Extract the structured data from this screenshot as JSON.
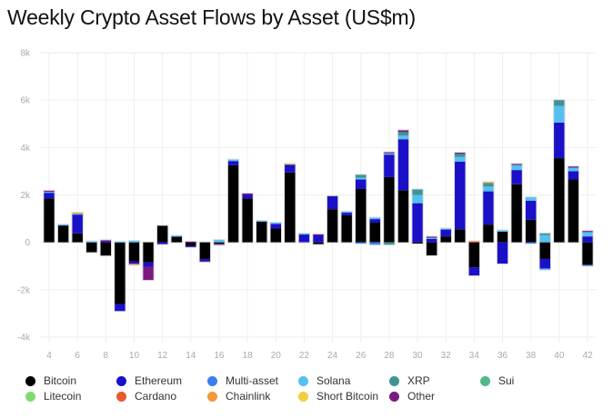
{
  "chart_data": {
    "type": "bar",
    "stacked": true,
    "title": "Weekly Crypto Asset Flows by Asset (US$m)",
    "xlabel": "",
    "ylabel": "",
    "ylim": [
      -4000,
      8000
    ],
    "yticks": [
      -4000,
      -2000,
      0,
      2000,
      4000,
      6000,
      8000
    ],
    "ytick_labels": [
      "-4k",
      "-2k",
      "0",
      "2k",
      "4k",
      "6k",
      "8k"
    ],
    "xtick_labels": [
      "4",
      "6",
      "8",
      "10",
      "12",
      "14",
      "16",
      "18",
      "20",
      "22",
      "24",
      "26",
      "28",
      "30",
      "32",
      "34",
      "36",
      "38",
      "40",
      "42"
    ],
    "grid": true,
    "legend_position": "bottom",
    "categories": [
      4,
      5,
      6,
      7,
      8,
      9,
      10,
      11,
      12,
      13,
      14,
      15,
      16,
      17,
      18,
      19,
      20,
      21,
      22,
      23,
      24,
      25,
      26,
      27,
      28,
      29,
      30,
      31,
      32,
      33,
      34,
      35,
      36,
      37,
      38,
      39,
      40,
      41,
      42
    ],
    "series": [
      {
        "name": "Bitcoin",
        "color": "#000000",
        "values": [
          1850,
          720,
          380,
          -420,
          -560,
          -2600,
          -800,
          -850,
          700,
          250,
          -150,
          -700,
          -60,
          3250,
          1850,
          880,
          580,
          2950,
          0,
          -80,
          1400,
          1150,
          2250,
          830,
          2750,
          2200,
          -50,
          -550,
          250,
          550,
          -1050,
          750,
          450,
          2450,
          950,
          -700,
          3550,
          2650,
          -950
        ]
      },
      {
        "name": "Ethereum",
        "color": "#1a10c8",
        "values": [
          250,
          0,
          800,
          0,
          60,
          -300,
          -100,
          -180,
          -80,
          0,
          -50,
          -80,
          0,
          180,
          150,
          0,
          200,
          350,
          350,
          320,
          550,
          100,
          400,
          150,
          950,
          2150,
          1650,
          150,
          300,
          2850,
          -350,
          1400,
          -900,
          600,
          800,
          -400,
          1500,
          350,
          250
        ]
      },
      {
        "name": "Multi-asset",
        "color": "#3b7ff0",
        "values": [
          0,
          0,
          0,
          0,
          0,
          0,
          0,
          0,
          0,
          0,
          0,
          0,
          0,
          0,
          0,
          0,
          0,
          0,
          0,
          0,
          0,
          0,
          -50,
          -100,
          0,
          0,
          0,
          0,
          0,
          0,
          0,
          0,
          0,
          0,
          -50,
          -50,
          0,
          0,
          -30
        ]
      },
      {
        "name": "Solana",
        "color": "#55c0f0",
        "values": [
          30,
          30,
          30,
          40,
          0,
          30,
          60,
          0,
          0,
          30,
          0,
          0,
          100,
          60,
          0,
          30,
          50,
          0,
          20,
          0,
          0,
          50,
          80,
          60,
          60,
          150,
          350,
          60,
          30,
          200,
          0,
          200,
          60,
          230,
          150,
          300,
          700,
          150,
          200
        ]
      },
      {
        "name": "XRP",
        "color": "#3f9493",
        "values": [
          0,
          0,
          0,
          0,
          0,
          0,
          0,
          0,
          0,
          0,
          0,
          0,
          0,
          0,
          0,
          0,
          0,
          0,
          0,
          0,
          0,
          0,
          120,
          0,
          -100,
          150,
          230,
          0,
          0,
          150,
          0,
          150,
          0,
          0,
          0,
          80,
          250,
          0,
          0
        ]
      },
      {
        "name": "Sui",
        "color": "#52b88c",
        "values": [
          0,
          0,
          0,
          0,
          0,
          0,
          0,
          0,
          0,
          0,
          0,
          0,
          0,
          0,
          0,
          0,
          0,
          0,
          0,
          0,
          0,
          0,
          0,
          0,
          0,
          0,
          0,
          0,
          0,
          0,
          0,
          0,
          0,
          0,
          0,
          0,
          0,
          0,
          0
        ]
      },
      {
        "name": "Litecoin",
        "color": "#7fdc6e",
        "values": [
          0,
          0,
          0,
          0,
          0,
          0,
          0,
          0,
          0,
          0,
          0,
          0,
          0,
          0,
          0,
          0,
          0,
          0,
          0,
          0,
          0,
          0,
          0,
          0,
          0,
          0,
          0,
          0,
          0,
          0,
          0,
          0,
          0,
          0,
          0,
          0,
          0,
          0,
          0
        ]
      },
      {
        "name": "Cardano",
        "color": "#e85a2c",
        "values": [
          0,
          0,
          0,
          0,
          0,
          0,
          -40,
          0,
          0,
          0,
          0,
          0,
          0,
          0,
          0,
          0,
          0,
          0,
          0,
          0,
          0,
          0,
          0,
          0,
          0,
          0,
          0,
          0,
          0,
          0,
          40,
          0,
          0,
          0,
          0,
          0,
          0,
          0,
          0
        ]
      },
      {
        "name": "Chainlink",
        "color": "#f0983a",
        "values": [
          0,
          0,
          40,
          0,
          0,
          0,
          0,
          0,
          0,
          0,
          0,
          0,
          0,
          0,
          0,
          0,
          0,
          0,
          0,
          0,
          0,
          0,
          0,
          0,
          0,
          0,
          0,
          0,
          0,
          0,
          0,
          40,
          0,
          0,
          0,
          0,
          0,
          0,
          0
        ]
      },
      {
        "name": "Short Bitcoin",
        "color": "#f0d040",
        "values": [
          0,
          0,
          0,
          0,
          0,
          0,
          0,
          0,
          0,
          0,
          0,
          0,
          0,
          0,
          0,
          0,
          0,
          20,
          0,
          0,
          0,
          0,
          0,
          0,
          0,
          0,
          0,
          0,
          0,
          0,
          0,
          0,
          0,
          0,
          0,
          0,
          0,
          0,
          0
        ]
      },
      {
        "name": "Other",
        "color": "#7a1a80",
        "values": [
          50,
          0,
          0,
          0,
          30,
          0,
          0,
          -560,
          0,
          0,
          30,
          -30,
          -30,
          0,
          60,
          0,
          0,
          0,
          0,
          20,
          0,
          0,
          0,
          0,
          40,
          80,
          0,
          30,
          0,
          30,
          0,
          0,
          0,
          30,
          0,
          0,
          0,
          50,
          30
        ]
      }
    ]
  },
  "legend": {
    "items": [
      {
        "label": "Bitcoin",
        "color": "#000000"
      },
      {
        "label": "Ethereum",
        "color": "#1a10c8"
      },
      {
        "label": "Multi-asset",
        "color": "#3b7ff0"
      },
      {
        "label": "Solana",
        "color": "#55c0f0"
      },
      {
        "label": "XRP",
        "color": "#3f9493"
      },
      {
        "label": "Sui",
        "color": "#52b88c"
      },
      {
        "label": "Litecoin",
        "color": "#7fdc6e"
      },
      {
        "label": "Cardano",
        "color": "#e85a2c"
      },
      {
        "label": "Chainlink",
        "color": "#f0983a"
      },
      {
        "label": "Short Bitcoin",
        "color": "#f0d040"
      },
      {
        "label": "Other",
        "color": "#7a1a80"
      }
    ]
  }
}
